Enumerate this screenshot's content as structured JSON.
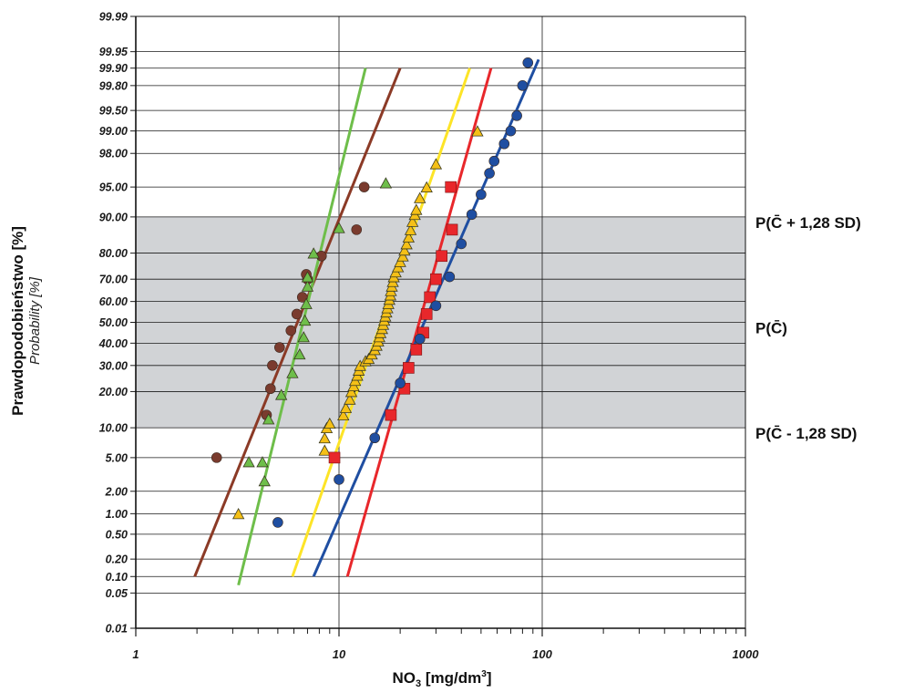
{
  "chart_data": {
    "type": "scatter",
    "xscale": "log",
    "yscale": "probability",
    "xlim": [
      1,
      1000
    ],
    "ylim": [
      0.01,
      99.99
    ],
    "xlabel": {
      "main": "NO",
      "sub": "3",
      "units": " [mg/dm",
      "sup": "3",
      "close": "]"
    },
    "ylabel": "Prawdopodobieństwo [%]",
    "ylabel_secondary": "Probability [%]",
    "x_ticks": [
      1,
      10,
      100,
      1000
    ],
    "x_tick_labels": [
      "1",
      "10",
      "100",
      "1000"
    ],
    "y_ticks": [
      0.01,
      0.05,
      0.1,
      0.2,
      0.5,
      1,
      2,
      5,
      10,
      20,
      30,
      40,
      50,
      60,
      70,
      80,
      90,
      95,
      98,
      99,
      99.5,
      99.8,
      99.9,
      99.95,
      99.99
    ],
    "y_tick_labels": [
      "0.01",
      "0.05",
      "0.10",
      "0.20",
      "0.50",
      "1.00",
      "2.00",
      "5.00",
      "10.00",
      "20.00",
      "30.00",
      "40.00",
      "50.00",
      "60.00",
      "70.00",
      "80.00",
      "90.00",
      "95.00",
      "98.00",
      "99.00",
      "99.50",
      "99.80",
      "99.90",
      "99.95",
      "99.99"
    ],
    "grid": true,
    "band": {
      "from": 10,
      "to": 90,
      "color": "#d1d3d6"
    },
    "annotations": [
      {
        "y": 90,
        "label": "P(C̄ + 1,28 SD)"
      },
      {
        "y": 50,
        "label": "P(C̄)"
      },
      {
        "y": 10,
        "label": "P(C̄ - 1,28 SD)"
      }
    ],
    "series": [
      {
        "marker": "circle",
        "color": "#7a3b2e",
        "line_color": "#8b3a26",
        "points": [
          [
            2.5,
            5
          ],
          [
            4.4,
            13
          ],
          [
            4.6,
            21
          ],
          [
            4.7,
            30
          ],
          [
            5.1,
            38
          ],
          [
            5.8,
            46
          ],
          [
            6.2,
            54
          ],
          [
            6.6,
            62
          ],
          [
            7,
            70
          ],
          [
            6.9,
            72
          ],
          [
            8.2,
            79
          ],
          [
            12.2,
            87
          ],
          [
            13.3,
            95
          ]
        ],
        "fit": [
          [
            1.95,
            0.1
          ],
          [
            20,
            99.9
          ]
        ]
      },
      {
        "marker": "triangle",
        "color": "#6ebe4a",
        "line_color": "#6ebe4a",
        "points": [
          [
            3.6,
            4.5
          ],
          [
            4.2,
            4.5
          ],
          [
            4.3,
            2.7
          ],
          [
            4.5,
            12
          ],
          [
            5.2,
            19
          ],
          [
            5.9,
            27
          ],
          [
            6.4,
            35
          ],
          [
            6.7,
            43
          ],
          [
            6.8,
            51
          ],
          [
            6.9,
            59
          ],
          [
            7,
            67
          ],
          [
            7,
            71
          ],
          [
            7.5,
            80
          ],
          [
            10,
            87.5
          ],
          [
            17,
            95.5
          ]
        ],
        "fit": [
          [
            3.2,
            0.07
          ],
          [
            13.5,
            99.9
          ]
        ]
      },
      {
        "marker": "triangle",
        "color": "#f5c016",
        "line_color": "#fde427",
        "points": [
          [
            3.2,
            1.0
          ],
          [
            8.5,
            6
          ],
          [
            8.5,
            8
          ],
          [
            8.7,
            10
          ],
          [
            9,
            11
          ],
          [
            10.5,
            13
          ],
          [
            10.8,
            15
          ],
          [
            11.3,
            17.5
          ],
          [
            11.5,
            20
          ],
          [
            11.8,
            22
          ],
          [
            12,
            24
          ],
          [
            12.3,
            26
          ],
          [
            12.5,
            28
          ],
          [
            12.7,
            30
          ],
          [
            13.5,
            32
          ],
          [
            14,
            33
          ],
          [
            14.5,
            35
          ],
          [
            15,
            37
          ],
          [
            15.3,
            39
          ],
          [
            15.6,
            41
          ],
          [
            15.8,
            43
          ],
          [
            16,
            45
          ],
          [
            16.3,
            47
          ],
          [
            16.5,
            49
          ],
          [
            16.7,
            51
          ],
          [
            16.9,
            53
          ],
          [
            17.1,
            55
          ],
          [
            17.3,
            57
          ],
          [
            17.5,
            59
          ],
          [
            17.7,
            61
          ],
          [
            17.9,
            63
          ],
          [
            18,
            65
          ],
          [
            18.2,
            67
          ],
          [
            18.4,
            69
          ],
          [
            18.6,
            71
          ],
          [
            19,
            73
          ],
          [
            19.5,
            75
          ],
          [
            20,
            77
          ],
          [
            20.6,
            79
          ],
          [
            21,
            81
          ],
          [
            21.5,
            83
          ],
          [
            22,
            85
          ],
          [
            22.5,
            87
          ],
          [
            23,
            89
          ],
          [
            23.6,
            90.5
          ],
          [
            24,
            91.5
          ],
          [
            25,
            93.5
          ],
          [
            27,
            95
          ],
          [
            30,
            97.3
          ],
          [
            48,
            99
          ]
        ],
        "fit": [
          [
            5.9,
            0.1
          ],
          [
            44,
            99.9
          ]
        ]
      },
      {
        "marker": "square",
        "color": "#e8272b",
        "line_color": "#e8272b",
        "points": [
          [
            9.5,
            5
          ],
          [
            18,
            13
          ],
          [
            21,
            21
          ],
          [
            22,
            29
          ],
          [
            24,
            37
          ],
          [
            26,
            45
          ],
          [
            27,
            54
          ],
          [
            28,
            62
          ],
          [
            30,
            70
          ],
          [
            32,
            79
          ],
          [
            36,
            87
          ],
          [
            35.5,
            95
          ]
        ],
        "fit": [
          [
            11,
            0.1
          ],
          [
            56,
            99.9
          ]
        ]
      },
      {
        "marker": "circle",
        "color": "#1f4ea1",
        "line_color": "#1f4ea1",
        "points": [
          [
            5,
            0.75
          ],
          [
            10,
            2.8
          ],
          [
            15,
            8
          ],
          [
            20,
            23
          ],
          [
            25,
            42
          ],
          [
            30,
            58
          ],
          [
            35,
            71
          ],
          [
            40,
            83
          ],
          [
            45,
            90.5
          ],
          [
            50,
            94
          ],
          [
            55,
            96.5
          ],
          [
            58,
            97.5
          ],
          [
            65,
            98.5
          ],
          [
            70,
            99
          ],
          [
            75,
            99.4
          ],
          [
            80,
            99.8
          ],
          [
            85,
            99.92
          ]
        ],
        "fit": [
          [
            7.5,
            0.1
          ],
          [
            96,
            99.93
          ]
        ]
      }
    ]
  }
}
